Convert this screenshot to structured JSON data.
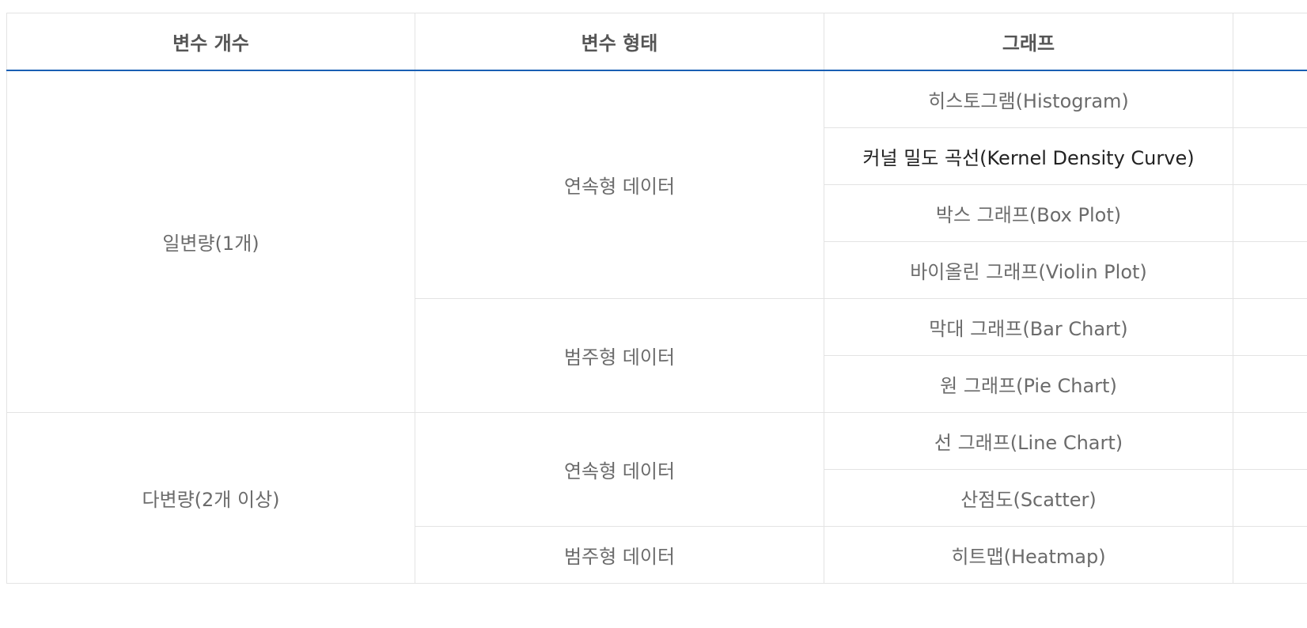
{
  "headers": [
    "변수 개수",
    "변수 형태",
    "그래프"
  ],
  "groups": [
    {
      "count_label": "일변량(1개)",
      "types": [
        {
          "type_label": "연속형 데이터",
          "graphs": [
            "히스토그램(Histogram)",
            "커널 밀도 곡선(Kernel Density Curve)",
            "박스 그래프(Box Plot)",
            "바이올린 그래프(Violin Plot)"
          ]
        },
        {
          "type_label": "범주형 데이터",
          "graphs": [
            "막대 그래프(Bar Chart)",
            "원 그래프(Pie Chart)"
          ]
        }
      ]
    },
    {
      "count_label": "다변량(2개 이상)",
      "types": [
        {
          "type_label": "연속형 데이터",
          "graphs": [
            "선 그래프(Line Chart)",
            "산점도(Scatter)"
          ]
        },
        {
          "type_label": "범주형 데이터",
          "graphs": [
            "히트맵(Heatmap)"
          ]
        }
      ]
    }
  ],
  "colors": {
    "header_rule": "#1a5fb4",
    "border": "#e3e3e3",
    "text": "#6b6b6b",
    "header_text": "#555555"
  }
}
